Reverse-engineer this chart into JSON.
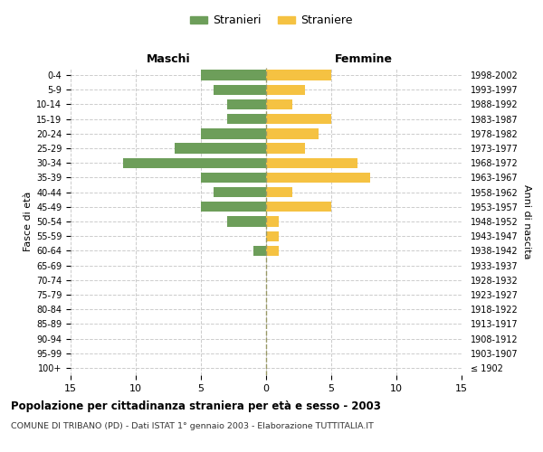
{
  "age_groups": [
    "100+",
    "95-99",
    "90-94",
    "85-89",
    "80-84",
    "75-79",
    "70-74",
    "65-69",
    "60-64",
    "55-59",
    "50-54",
    "45-49",
    "40-44",
    "35-39",
    "30-34",
    "25-29",
    "20-24",
    "15-19",
    "10-14",
    "5-9",
    "0-4"
  ],
  "birth_years": [
    "≤ 1902",
    "1903-1907",
    "1908-1912",
    "1913-1917",
    "1918-1922",
    "1923-1927",
    "1928-1932",
    "1933-1937",
    "1938-1942",
    "1943-1947",
    "1948-1952",
    "1953-1957",
    "1958-1962",
    "1963-1967",
    "1968-1972",
    "1973-1977",
    "1978-1982",
    "1983-1987",
    "1988-1992",
    "1993-1997",
    "1998-2002"
  ],
  "males": [
    0,
    0,
    0,
    0,
    0,
    0,
    0,
    0,
    1,
    0,
    3,
    5,
    4,
    5,
    11,
    7,
    5,
    3,
    3,
    4,
    5
  ],
  "females": [
    0,
    0,
    0,
    0,
    0,
    0,
    0,
    0,
    1,
    1,
    1,
    5,
    2,
    8,
    7,
    3,
    4,
    5,
    2,
    3,
    5
  ],
  "male_color": "#6d9e5a",
  "female_color": "#f5c242",
  "title": "Popolazione per cittadinanza straniera per età e sesso - 2003",
  "subtitle": "COMUNE DI TRIBANO (PD) - Dati ISTAT 1° gennaio 2003 - Elaborazione TUTTITALIA.IT",
  "xlabel_left": "Maschi",
  "xlabel_right": "Femmine",
  "ylabel_left": "Fasce di età",
  "ylabel_right": "Anni di nascita",
  "legend_male": "Stranieri",
  "legend_female": "Straniere",
  "xlim": 15,
  "background_color": "#ffffff",
  "grid_color": "#cccccc"
}
